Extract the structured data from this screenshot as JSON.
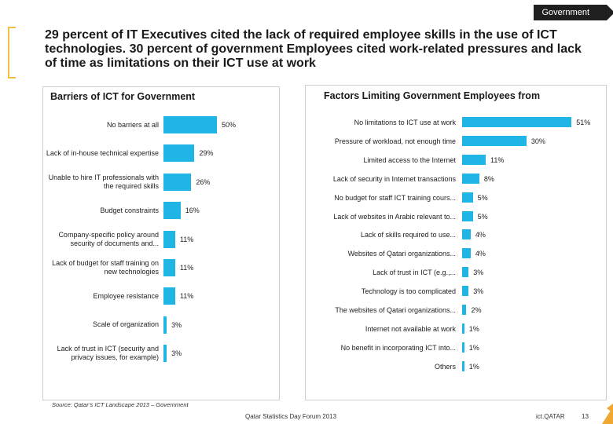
{
  "tag": "Government",
  "headline": "29 percent of IT Executives cited the lack of required employee skills in the use of ICT technologies. 30 percent of government Employees cited work-related pressures and lack of time as limitations on their ICT use at work",
  "source": "Source: Qatar’s ICT Landscape 2013 – Government",
  "footer": {
    "event": "Qatar Statistics Day Forum 2013",
    "brand": "ict.QATAR",
    "page": "13"
  },
  "colors": {
    "bar": "#1fb6e6",
    "tag": "#1f1f1f",
    "accent": "#f0a830"
  },
  "chart_data": [
    {
      "type": "bar",
      "orientation": "horizontal",
      "title": "Barriers of ICT for Government",
      "categories": [
        "No barriers at all",
        "Lack of in-house technical expertise",
        "Unable to hire IT professionals with the required skills",
        "Budget constraints",
        "Company-specific policy around security of documents and...",
        "Lack of budget for staff training on new technologies",
        "Employee resistance",
        "Scale of organization",
        "Lack of trust in ICT (security and privacy issues, for example)"
      ],
      "values": [
        50,
        29,
        26,
        16,
        11,
        11,
        11,
        3,
        3
      ],
      "value_labels": [
        "50%",
        "29%",
        "26%",
        "16%",
        "11%",
        "11%",
        "11%",
        "3%",
        "3%"
      ]
    },
    {
      "type": "bar",
      "orientation": "horizontal",
      "title": "Factors Limiting Government Employees from",
      "categories": [
        "No limitations to ICT use at work",
        "Pressure of workload, not enough time",
        "Limited access to the Internet",
        "Lack of security in Internet transactions",
        "No budget for staff ICT training cours...",
        "Lack of websites in Arabic relevant to...",
        "Lack of skills required to use...",
        "Websites of Qatari organizations...",
        "Lack of trust in ICT (e.g.,...",
        "Technology is too complicated",
        "The websites of Qatari organizations...",
        "Internet not available at work",
        "No benefit in incorporating ICT into...",
        "Others"
      ],
      "values": [
        51,
        30,
        11,
        8,
        5,
        5,
        4,
        4,
        3,
        3,
        2,
        1,
        1,
        1
      ],
      "value_labels": [
        "51%",
        "30%",
        "11%",
        "8%",
        "5%",
        "5%",
        "4%",
        "4%",
        "3%",
        "3%",
        "2%",
        "1%",
        "1%",
        "1%"
      ]
    }
  ]
}
